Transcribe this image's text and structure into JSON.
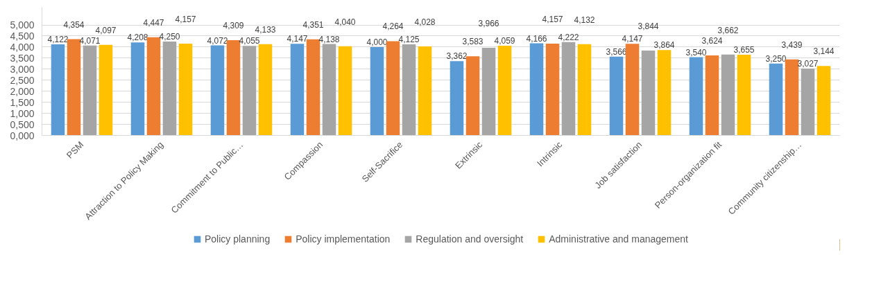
{
  "chart_data": {
    "type": "bar",
    "categories": [
      "PSM",
      "Attraction to Policy Making",
      "Commitment to Public…",
      "Compassion",
      "Self-Sacrifice",
      "Extrinsic",
      "Intrinsic",
      "Job satisfaction",
      "Person-organization fit",
      "Community citizenship…"
    ],
    "series": [
      {
        "name": "Policy planning",
        "color": "#5b9bd5",
        "values": [
          4.122,
          4.208,
          4.072,
          4.147,
          4.0,
          3.362,
          4.166,
          3.566,
          3.54,
          3.25
        ],
        "value_labels": [
          "4,122",
          "4,208",
          "4,072",
          "4,147",
          "4,000",
          "3,362",
          "4,166",
          "3,566",
          "3,540",
          "3,250"
        ]
      },
      {
        "name": "Policy implementation",
        "color": "#ed7d31",
        "values": [
          4.354,
          4.447,
          4.309,
          4.351,
          4.264,
          3.583,
          4.157,
          4.147,
          3.624,
          3.439
        ],
        "value_labels": [
          "4,354",
          "4,447",
          "4,309",
          "4,351",
          "4,264",
          "3,583",
          "4,157",
          "4,147",
          "3,624",
          "3,439"
        ]
      },
      {
        "name": "Regulation and oversight",
        "color": "#a5a5a5",
        "values": [
          4.071,
          4.25,
          4.055,
          4.138,
          4.125,
          3.966,
          4.222,
          3.844,
          3.662,
          3.027
        ],
        "value_labels": [
          "4,071",
          "4,250",
          "4,055",
          "4,138",
          "4,125",
          "3,966",
          "4,222",
          "3,844",
          "3,662",
          "3,027"
        ]
      },
      {
        "name": "Administrative and management",
        "color": "#ffc000",
        "values": [
          4.097,
          4.157,
          4.133,
          4.04,
          4.028,
          4.059,
          4.132,
          3.864,
          3.655,
          3.144
        ],
        "value_labels": [
          "4,097",
          "4,157",
          "4,133",
          "4,040",
          "4,028",
          "4,059",
          "4,132",
          "3,864",
          "3,655",
          "3,144"
        ]
      }
    ],
    "ylim": [
      0,
      5.8
    ],
    "yticks": [
      {
        "value": 0,
        "label": "0,000"
      },
      {
        "value": 0.5,
        "label": "0,500"
      },
      {
        "value": 1,
        "label": "1,000"
      },
      {
        "value": 1.5,
        "label": "1,500"
      },
      {
        "value": 2,
        "label": "2,000"
      },
      {
        "value": 2.5,
        "label": "2,500"
      },
      {
        "value": 3,
        "label": "3,000"
      },
      {
        "value": 3.5,
        "label": "3,500"
      },
      {
        "value": 4,
        "label": "4,000"
      },
      {
        "value": 4.5,
        "label": "4,500"
      },
      {
        "value": 5,
        "label": "5,000"
      }
    ],
    "grid": "y",
    "legend": "bottom"
  }
}
